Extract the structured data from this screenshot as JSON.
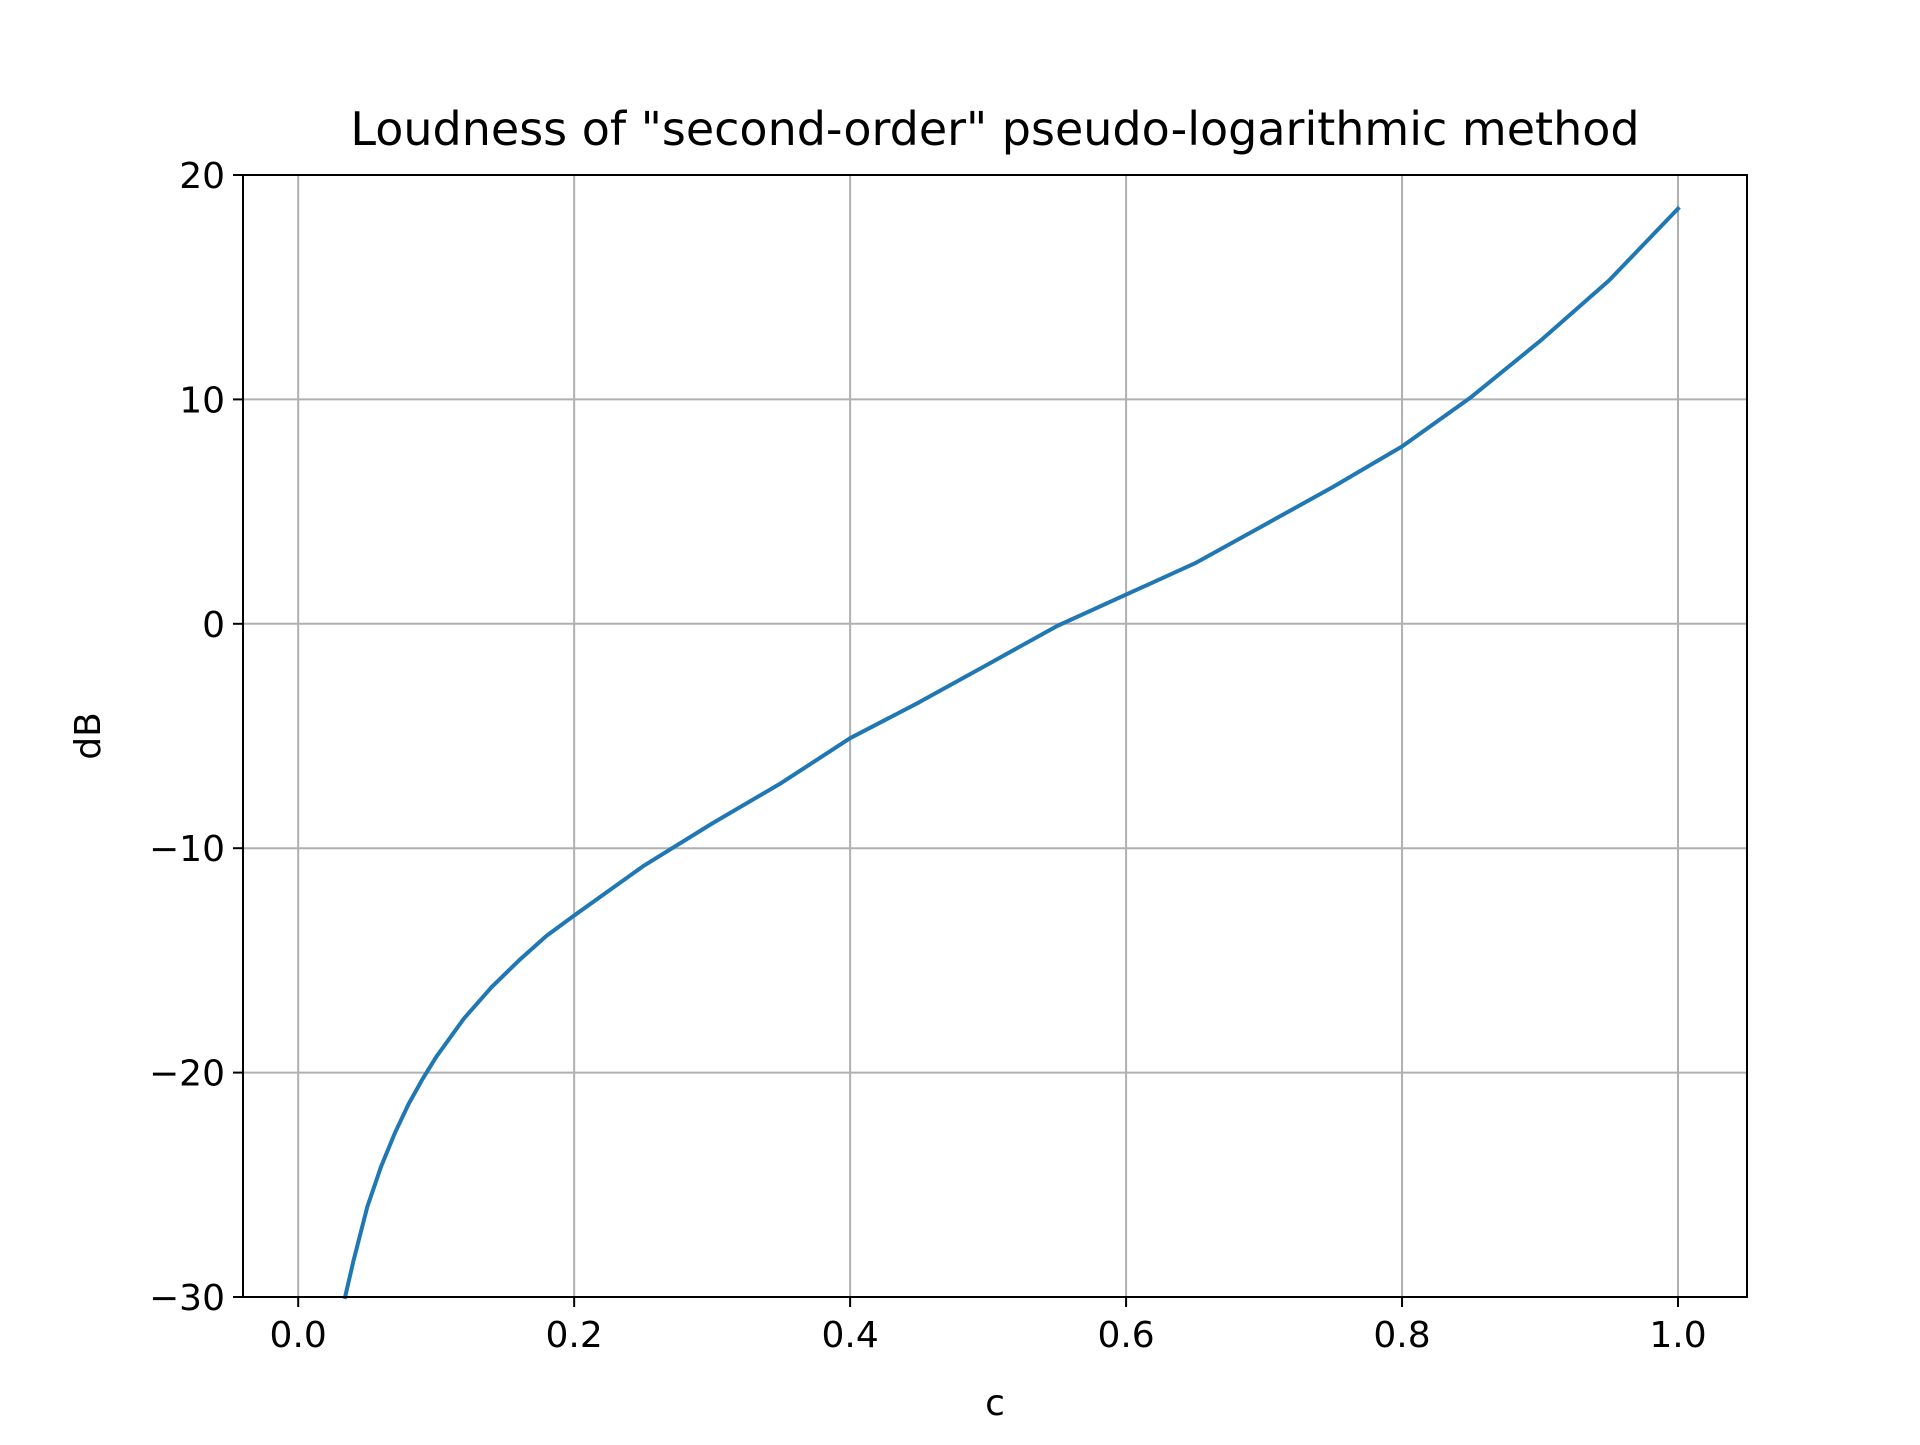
{
  "chart_data": {
    "type": "line",
    "title": "Loudness of \"second-order\" pseudo-logarithmic method",
    "xlabel": "c",
    "ylabel": "dB",
    "xlim": [
      -0.04,
      1.05
    ],
    "ylim": [
      -30,
      20
    ],
    "grid": true,
    "x_ticks": [
      0.0,
      0.2,
      0.4,
      0.6,
      0.8,
      1.0
    ],
    "x_tick_labels": [
      "0.0",
      "0.2",
      "0.4",
      "0.6",
      "0.8",
      "1.0"
    ],
    "y_ticks": [
      -30,
      -20,
      -10,
      0,
      10,
      20
    ],
    "y_tick_labels": [
      "−30",
      "−20",
      "−10",
      "0",
      "10",
      "20"
    ],
    "series": [
      {
        "color": "#1f77b4",
        "x": [
          0.034,
          0.04,
          0.05,
          0.06,
          0.07,
          0.08,
          0.09,
          0.1,
          0.12,
          0.14,
          0.16,
          0.18,
          0.2,
          0.25,
          0.3,
          0.35,
          0.4,
          0.45,
          0.5,
          0.55,
          0.6,
          0.65,
          0.7,
          0.75,
          0.8,
          0.85,
          0.9,
          0.95,
          1.0
        ],
        "values": [
          -30.0,
          -28.4,
          -26.0,
          -24.2,
          -22.7,
          -21.4,
          -20.3,
          -19.3,
          -17.6,
          -16.2,
          -15.0,
          -13.9,
          -13.0,
          -10.8,
          -8.9,
          -7.1,
          -5.1,
          -3.5,
          -1.8,
          -0.1,
          1.3,
          2.7,
          4.4,
          6.1,
          7.9,
          10.1,
          12.6,
          15.3,
          18.5
        ]
      }
    ]
  }
}
